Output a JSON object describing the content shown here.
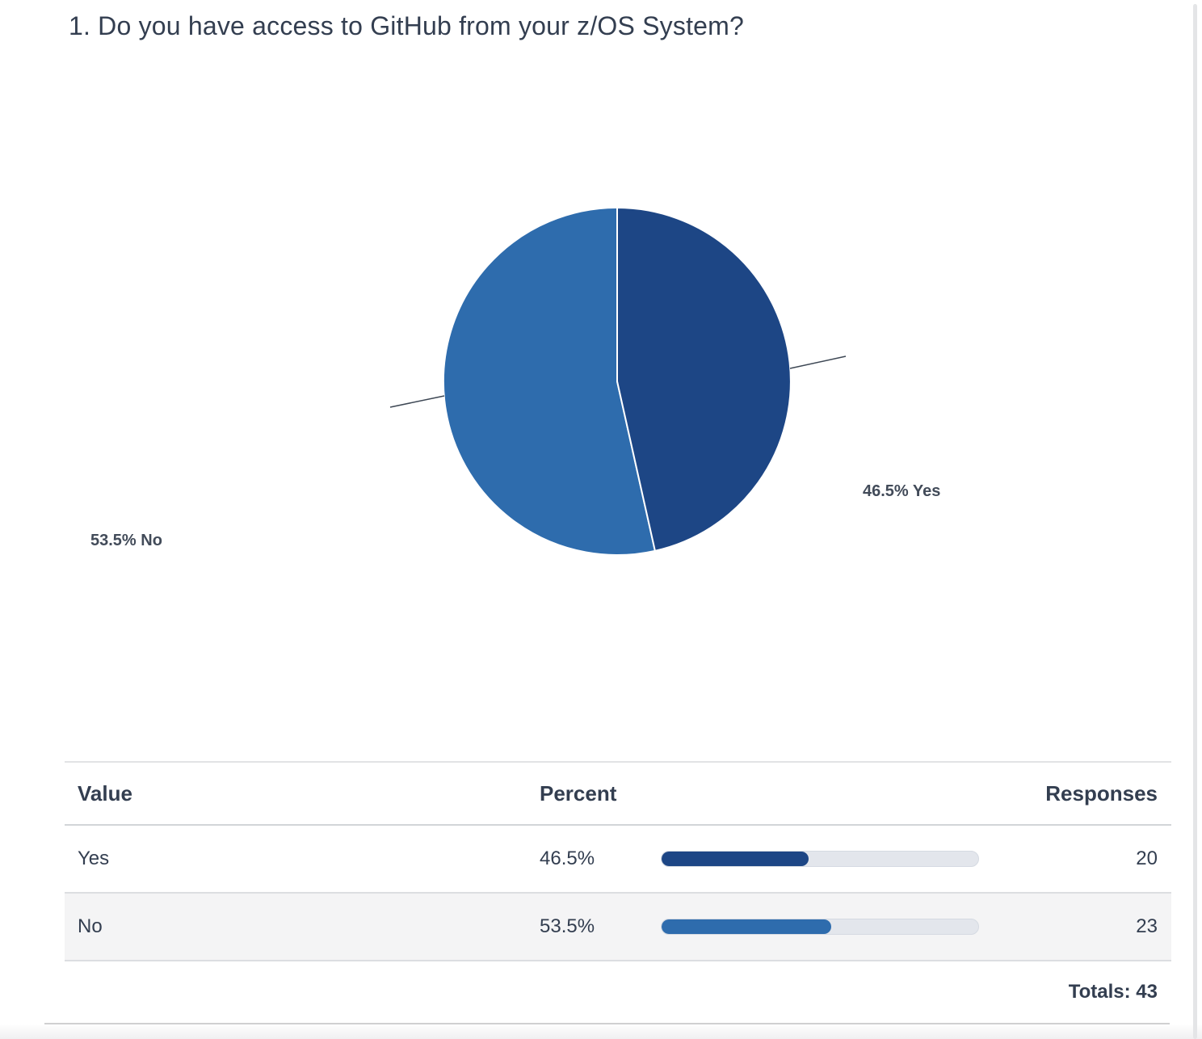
{
  "page": {
    "title": "1. Do you have access to GitHub from your z/OS System?"
  },
  "chart_data": {
    "type": "pie",
    "title": "1. Do you have access to GitHub from your z/OS System?",
    "labels": [
      "Yes",
      "No"
    ],
    "values": [
      46.5,
      53.5
    ],
    "responses": [
      20,
      23
    ],
    "total_responses": 43,
    "colors": [
      "#1d4685",
      "#2e6cad"
    ],
    "slice_annotations": [
      "46.5% Yes",
      "53.5% No"
    ],
    "legend_position": "outside-callouts",
    "start_angle": "12-o-clock",
    "direction": "clockwise"
  },
  "table": {
    "headers": {
      "value": "Value",
      "percent": "Percent",
      "responses": "Responses"
    },
    "rows": [
      {
        "value": "Yes",
        "percent": "46.5%",
        "percent_num": 46.5,
        "responses": "20",
        "bar_color": "#1d4685"
      },
      {
        "value": "No",
        "percent": "53.5%",
        "percent_num": 53.5,
        "responses": "23",
        "bar_color": "#2e6cad"
      }
    ],
    "totals": "Totals: 43"
  }
}
